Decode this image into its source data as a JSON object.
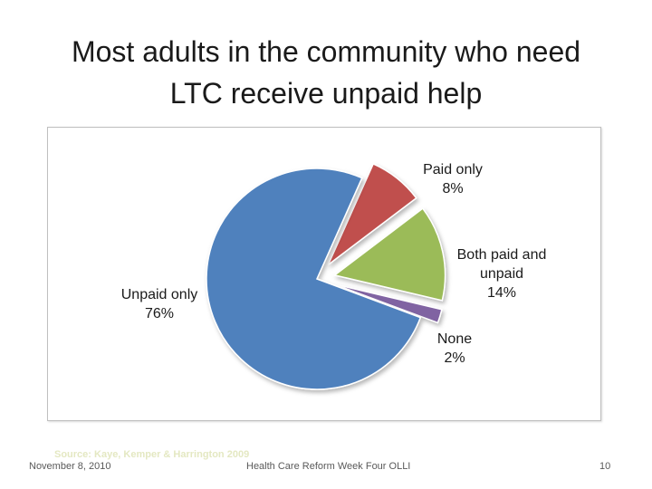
{
  "slide": {
    "title_line1": "Most adults in the community who need",
    "title_line2": "LTC receive unpaid help",
    "source_note": "Source: Kaye, Kemper & Harrington 2009",
    "footer_date": "November 8, 2010",
    "footer_center": "Health Care Reform Week Four OLLI",
    "page_number": "10"
  },
  "chart_data": {
    "type": "pie",
    "title": "",
    "legend": "none",
    "slices": [
      {
        "label_lines": [
          "Paid only"
        ],
        "percent_label": "8%",
        "value": 8,
        "color": "#c0504d"
      },
      {
        "label_lines": [
          "Both paid and",
          "unpaid"
        ],
        "percent_label": "14%",
        "value": 14,
        "color": "#9bbb59"
      },
      {
        "label_lines": [
          "None"
        ],
        "percent_label": "2%",
        "value": 2,
        "color": "#8064a2"
      },
      {
        "label_lines": [
          "Unpaid only"
        ],
        "percent_label": "76%",
        "value": 76,
        "color": "#4f81bd"
      }
    ]
  }
}
